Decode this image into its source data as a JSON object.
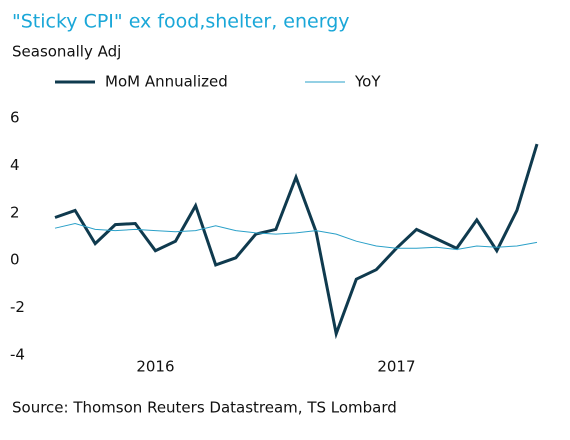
{
  "chart_data": {
    "type": "line",
    "title": "\"Sticky CPI\" ex food,shelter, energy",
    "subtitle": "Seasonally Adj",
    "source": "Source: Thomson Reuters Datastream, TS Lombard",
    "categories": [
      null,
      null,
      null,
      null,
      null,
      "2016",
      null,
      null,
      null,
      null,
      null,
      null,
      null,
      null,
      null,
      null,
      null,
      "2017",
      null,
      null,
      null,
      null,
      null,
      null,
      null
    ],
    "series": [
      {
        "name": "MoM Annualized",
        "color": "#0f3a4e",
        "values": [
          1.8,
          2.1,
          0.7,
          1.5,
          1.55,
          0.4,
          0.8,
          2.3,
          -0.2,
          0.1,
          1.1,
          1.3,
          3.5,
          1.2,
          -3.1,
          -0.8,
          -0.4,
          0.5,
          1.3,
          0.9,
          0.5,
          1.7,
          0.4,
          2.1,
          4.9
        ]
      },
      {
        "name": "YoY",
        "color": "#2aa0c8",
        "values": [
          1.35,
          1.55,
          1.3,
          1.25,
          1.3,
          1.25,
          1.2,
          1.25,
          1.45,
          1.25,
          1.15,
          1.1,
          1.15,
          1.25,
          1.1,
          0.8,
          0.6,
          0.5,
          0.5,
          0.55,
          0.45,
          0.6,
          0.55,
          0.6,
          0.75
        ]
      }
    ],
    "ylim": [
      -4,
      6
    ],
    "yticks": [
      -4,
      -2,
      0,
      2,
      4,
      6
    ],
    "title_color": "#1aa7d8"
  }
}
